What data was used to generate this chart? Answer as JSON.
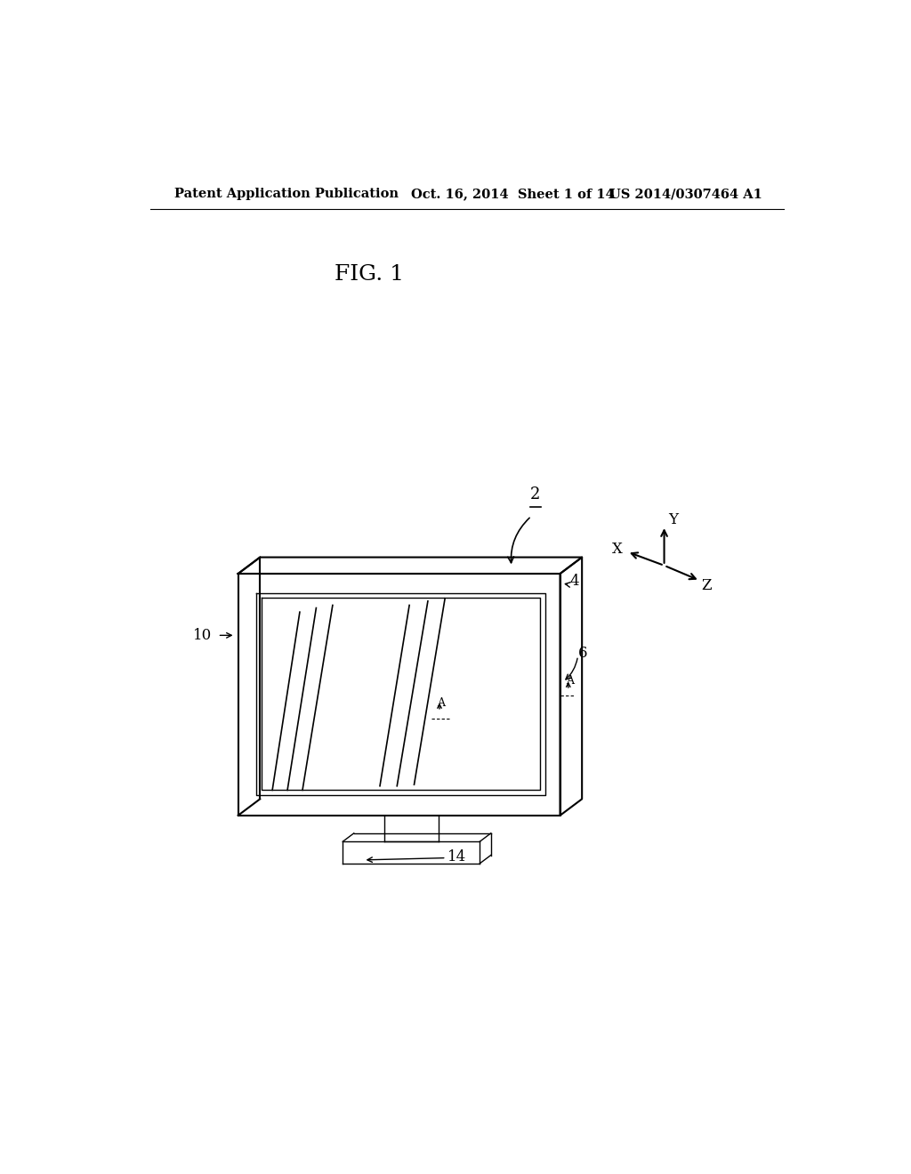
{
  "background_color": "#ffffff",
  "header_left": "Patent Application Publication",
  "header_mid": "Oct. 16, 2014  Sheet 1 of 14",
  "header_right": "US 2014/0307464 A1",
  "fig_label": "FIG. 1",
  "label_2": "2",
  "label_4": "4",
  "label_6": "6",
  "label_10": "10",
  "label_14": "14",
  "axis_X": "X",
  "axis_Y": "Y",
  "axis_Z": "Z"
}
